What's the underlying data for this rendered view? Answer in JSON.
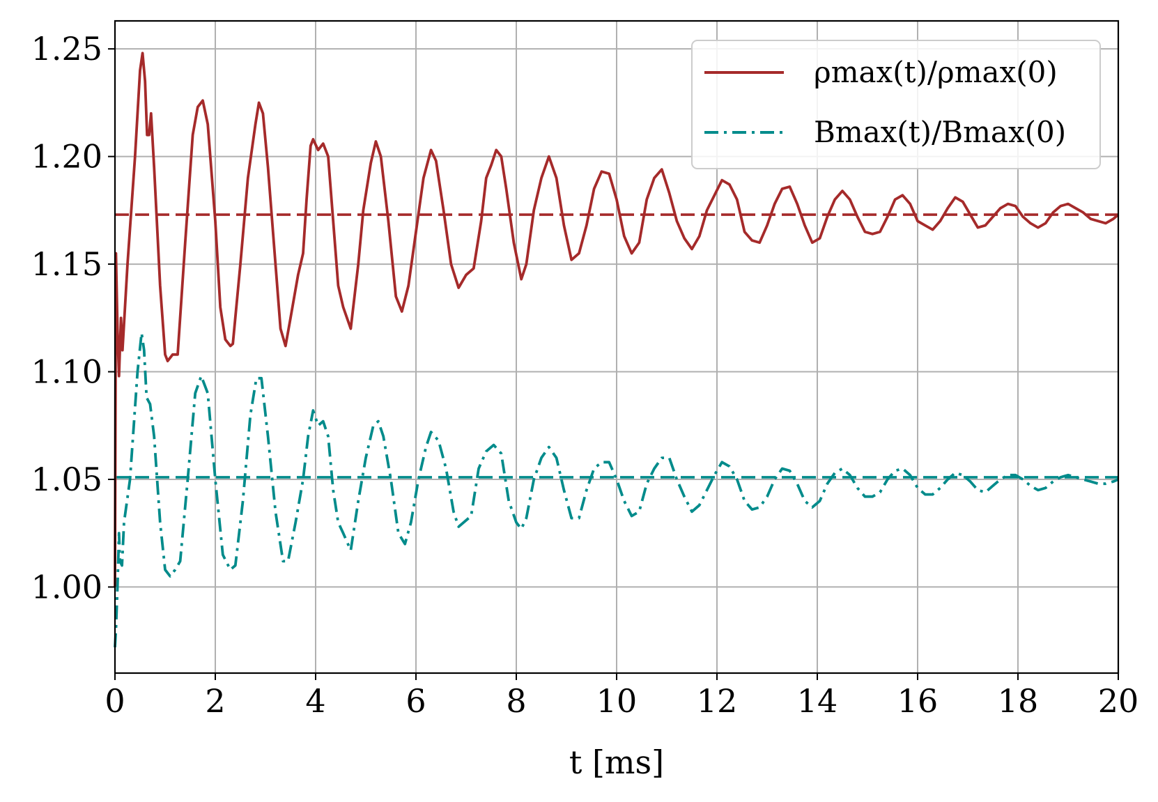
{
  "chart_data": {
    "type": "line",
    "title": "",
    "xlabel": "t [ms]",
    "ylabel": "",
    "xlim": [
      0,
      20
    ],
    "ylim": [
      0.96,
      1.263
    ],
    "x_ticks": [
      0,
      2,
      4,
      6,
      8,
      10,
      12,
      14,
      16,
      18,
      20
    ],
    "y_ticks": [
      1.0,
      1.05,
      1.1,
      1.15,
      1.2,
      1.25
    ],
    "x_tick_labels": [
      "0",
      "2",
      "4",
      "6",
      "8",
      "10",
      "12",
      "14",
      "16",
      "18",
      "20"
    ],
    "y_tick_labels": [
      "1.00",
      "1.05",
      "1.10",
      "1.15",
      "1.20",
      "1.25"
    ],
    "grid": true,
    "legend_position": "top-right",
    "series": [
      {
        "name": "ρmax(t)/ρmax(0)",
        "color": "#a52a2a",
        "style": "solid",
        "points": [
          [
            0.0,
            1.0
          ],
          [
            0.02,
            1.155
          ],
          [
            0.05,
            1.12
          ],
          [
            0.08,
            1.098
          ],
          [
            0.12,
            1.125
          ],
          [
            0.15,
            1.11
          ],
          [
            0.25,
            1.15
          ],
          [
            0.4,
            1.2
          ],
          [
            0.5,
            1.24
          ],
          [
            0.55,
            1.248
          ],
          [
            0.6,
            1.235
          ],
          [
            0.64,
            1.21
          ],
          [
            0.68,
            1.21
          ],
          [
            0.72,
            1.22
          ],
          [
            0.78,
            1.195
          ],
          [
            0.9,
            1.14
          ],
          [
            1.0,
            1.108
          ],
          [
            1.05,
            1.105
          ],
          [
            1.15,
            1.108
          ],
          [
            1.25,
            1.108
          ],
          [
            1.4,
            1.16
          ],
          [
            1.55,
            1.21
          ],
          [
            1.65,
            1.223
          ],
          [
            1.75,
            1.226
          ],
          [
            1.85,
            1.215
          ],
          [
            2.0,
            1.17
          ],
          [
            2.1,
            1.13
          ],
          [
            2.2,
            1.115
          ],
          [
            2.3,
            1.112
          ],
          [
            2.35,
            1.113
          ],
          [
            2.5,
            1.15
          ],
          [
            2.65,
            1.19
          ],
          [
            2.8,
            1.215
          ],
          [
            2.87,
            1.225
          ],
          [
            2.95,
            1.22
          ],
          [
            3.05,
            1.195
          ],
          [
            3.2,
            1.15
          ],
          [
            3.3,
            1.12
          ],
          [
            3.4,
            1.112
          ],
          [
            3.5,
            1.125
          ],
          [
            3.65,
            1.145
          ],
          [
            3.75,
            1.155
          ],
          [
            3.82,
            1.18
          ],
          [
            3.9,
            1.205
          ],
          [
            3.95,
            1.208
          ],
          [
            4.05,
            1.203
          ],
          [
            4.15,
            1.206
          ],
          [
            4.25,
            1.2
          ],
          [
            4.35,
            1.17
          ],
          [
            4.45,
            1.14
          ],
          [
            4.55,
            1.13
          ],
          [
            4.7,
            1.12
          ],
          [
            4.85,
            1.15
          ],
          [
            4.95,
            1.175
          ],
          [
            5.1,
            1.197
          ],
          [
            5.2,
            1.207
          ],
          [
            5.3,
            1.2
          ],
          [
            5.45,
            1.17
          ],
          [
            5.6,
            1.135
          ],
          [
            5.72,
            1.128
          ],
          [
            5.85,
            1.14
          ],
          [
            6.0,
            1.165
          ],
          [
            6.15,
            1.19
          ],
          [
            6.3,
            1.203
          ],
          [
            6.4,
            1.198
          ],
          [
            6.55,
            1.175
          ],
          [
            6.7,
            1.15
          ],
          [
            6.85,
            1.139
          ],
          [
            7.0,
            1.145
          ],
          [
            7.15,
            1.148
          ],
          [
            7.3,
            1.17
          ],
          [
            7.4,
            1.19
          ],
          [
            7.5,
            1.196
          ],
          [
            7.6,
            1.203
          ],
          [
            7.7,
            1.2
          ],
          [
            7.8,
            1.185
          ],
          [
            7.95,
            1.16
          ],
          [
            8.1,
            1.143
          ],
          [
            8.2,
            1.15
          ],
          [
            8.35,
            1.175
          ],
          [
            8.5,
            1.19
          ],
          [
            8.65,
            1.2
          ],
          [
            8.8,
            1.19
          ],
          [
            8.95,
            1.168
          ],
          [
            9.1,
            1.152
          ],
          [
            9.25,
            1.155
          ],
          [
            9.4,
            1.168
          ],
          [
            9.55,
            1.185
          ],
          [
            9.7,
            1.193
          ],
          [
            9.85,
            1.192
          ],
          [
            10.0,
            1.18
          ],
          [
            10.15,
            1.163
          ],
          [
            10.3,
            1.155
          ],
          [
            10.45,
            1.16
          ],
          [
            10.6,
            1.18
          ],
          [
            10.75,
            1.19
          ],
          [
            10.9,
            1.194
          ],
          [
            11.05,
            1.183
          ],
          [
            11.2,
            1.17
          ],
          [
            11.35,
            1.162
          ],
          [
            11.5,
            1.157
          ],
          [
            11.65,
            1.163
          ],
          [
            11.8,
            1.175
          ],
          [
            11.95,
            1.182
          ],
          [
            12.1,
            1.189
          ],
          [
            12.25,
            1.187
          ],
          [
            12.4,
            1.18
          ],
          [
            12.55,
            1.165
          ],
          [
            12.7,
            1.161
          ],
          [
            12.85,
            1.16
          ],
          [
            13.0,
            1.168
          ],
          [
            13.15,
            1.178
          ],
          [
            13.3,
            1.185
          ],
          [
            13.45,
            1.186
          ],
          [
            13.6,
            1.178
          ],
          [
            13.75,
            1.168
          ],
          [
            13.9,
            1.16
          ],
          [
            14.05,
            1.162
          ],
          [
            14.2,
            1.172
          ],
          [
            14.35,
            1.18
          ],
          [
            14.5,
            1.184
          ],
          [
            14.65,
            1.18
          ],
          [
            14.8,
            1.172
          ],
          [
            14.95,
            1.165
          ],
          [
            15.1,
            1.164
          ],
          [
            15.25,
            1.165
          ],
          [
            15.4,
            1.172
          ],
          [
            15.55,
            1.18
          ],
          [
            15.7,
            1.182
          ],
          [
            15.85,
            1.178
          ],
          [
            16.0,
            1.17
          ],
          [
            16.15,
            1.168
          ],
          [
            16.3,
            1.166
          ],
          [
            16.45,
            1.17
          ],
          [
            16.6,
            1.176
          ],
          [
            16.75,
            1.181
          ],
          [
            16.9,
            1.179
          ],
          [
            17.05,
            1.173
          ],
          [
            17.2,
            1.167
          ],
          [
            17.35,
            1.168
          ],
          [
            17.5,
            1.172
          ],
          [
            17.65,
            1.176
          ],
          [
            17.8,
            1.178
          ],
          [
            17.95,
            1.177
          ],
          [
            18.1,
            1.172
          ],
          [
            18.25,
            1.169
          ],
          [
            18.4,
            1.167
          ],
          [
            18.55,
            1.169
          ],
          [
            18.7,
            1.174
          ],
          [
            18.85,
            1.177
          ],
          [
            19.0,
            1.178
          ],
          [
            19.15,
            1.176
          ],
          [
            19.3,
            1.174
          ],
          [
            19.45,
            1.171
          ],
          [
            19.6,
            1.17
          ],
          [
            19.75,
            1.169
          ],
          [
            19.9,
            1.171
          ],
          [
            20.0,
            1.173
          ]
        ]
      },
      {
        "name": "Bmax(t)/Bmax(0)",
        "color": "#008b8b",
        "style": "dashdot",
        "points": [
          [
            0.0,
            0.972
          ],
          [
            0.02,
            0.98
          ],
          [
            0.05,
            1.0
          ],
          [
            0.08,
            1.025
          ],
          [
            0.1,
            1.012
          ],
          [
            0.14,
            1.01
          ],
          [
            0.18,
            1.03
          ],
          [
            0.3,
            1.05
          ],
          [
            0.45,
            1.1
          ],
          [
            0.53,
            1.118
          ],
          [
            0.58,
            1.11
          ],
          [
            0.63,
            1.088
          ],
          [
            0.7,
            1.085
          ],
          [
            0.78,
            1.07
          ],
          [
            0.9,
            1.03
          ],
          [
            1.0,
            1.008
          ],
          [
            1.1,
            1.005
          ],
          [
            1.2,
            1.008
          ],
          [
            1.3,
            1.012
          ],
          [
            1.45,
            1.05
          ],
          [
            1.6,
            1.09
          ],
          [
            1.72,
            1.098
          ],
          [
            1.85,
            1.09
          ],
          [
            2.0,
            1.05
          ],
          [
            2.15,
            1.015
          ],
          [
            2.3,
            1.008
          ],
          [
            2.4,
            1.01
          ],
          [
            2.55,
            1.04
          ],
          [
            2.7,
            1.08
          ],
          [
            2.82,
            1.097
          ],
          [
            2.92,
            1.097
          ],
          [
            3.05,
            1.07
          ],
          [
            3.2,
            1.035
          ],
          [
            3.35,
            1.012
          ],
          [
            3.45,
            1.012
          ],
          [
            3.6,
            1.03
          ],
          [
            3.75,
            1.05
          ],
          [
            3.85,
            1.07
          ],
          [
            3.95,
            1.082
          ],
          [
            4.05,
            1.075
          ],
          [
            4.15,
            1.077
          ],
          [
            4.25,
            1.07
          ],
          [
            4.35,
            1.045
          ],
          [
            4.45,
            1.03
          ],
          [
            4.55,
            1.025
          ],
          [
            4.7,
            1.017
          ],
          [
            4.85,
            1.04
          ],
          [
            5.0,
            1.06
          ],
          [
            5.15,
            1.075
          ],
          [
            5.25,
            1.077
          ],
          [
            5.35,
            1.07
          ],
          [
            5.5,
            1.05
          ],
          [
            5.65,
            1.025
          ],
          [
            5.78,
            1.02
          ],
          [
            5.9,
            1.03
          ],
          [
            6.05,
            1.05
          ],
          [
            6.2,
            1.065
          ],
          [
            6.3,
            1.072
          ],
          [
            6.45,
            1.068
          ],
          [
            6.6,
            1.055
          ],
          [
            6.75,
            1.035
          ],
          [
            6.85,
            1.028
          ],
          [
            6.95,
            1.03
          ],
          [
            7.1,
            1.033
          ],
          [
            7.25,
            1.055
          ],
          [
            7.4,
            1.063
          ],
          [
            7.55,
            1.066
          ],
          [
            7.7,
            1.062
          ],
          [
            7.85,
            1.04
          ],
          [
            8.0,
            1.03
          ],
          [
            8.1,
            1.027
          ],
          [
            8.2,
            1.032
          ],
          [
            8.35,
            1.05
          ],
          [
            8.5,
            1.06
          ],
          [
            8.65,
            1.065
          ],
          [
            8.8,
            1.06
          ],
          [
            8.95,
            1.045
          ],
          [
            9.1,
            1.032
          ],
          [
            9.25,
            1.032
          ],
          [
            9.4,
            1.045
          ],
          [
            9.55,
            1.055
          ],
          [
            9.7,
            1.058
          ],
          [
            9.85,
            1.058
          ],
          [
            10.0,
            1.05
          ],
          [
            10.15,
            1.04
          ],
          [
            10.3,
            1.033
          ],
          [
            10.45,
            1.035
          ],
          [
            10.6,
            1.048
          ],
          [
            10.75,
            1.055
          ],
          [
            10.9,
            1.06
          ],
          [
            11.05,
            1.06
          ],
          [
            11.2,
            1.05
          ],
          [
            11.35,
            1.042
          ],
          [
            11.5,
            1.035
          ],
          [
            11.65,
            1.038
          ],
          [
            11.8,
            1.045
          ],
          [
            11.95,
            1.052
          ],
          [
            12.1,
            1.058
          ],
          [
            12.25,
            1.056
          ],
          [
            12.4,
            1.05
          ],
          [
            12.55,
            1.04
          ],
          [
            12.7,
            1.036
          ],
          [
            12.85,
            1.037
          ],
          [
            13.0,
            1.042
          ],
          [
            13.15,
            1.05
          ],
          [
            13.3,
            1.055
          ],
          [
            13.45,
            1.054
          ],
          [
            13.6,
            1.048
          ],
          [
            13.75,
            1.04
          ],
          [
            13.9,
            1.037
          ],
          [
            14.05,
            1.04
          ],
          [
            14.2,
            1.048
          ],
          [
            14.35,
            1.053
          ],
          [
            14.5,
            1.055
          ],
          [
            14.65,
            1.052
          ],
          [
            14.8,
            1.046
          ],
          [
            14.95,
            1.042
          ],
          [
            15.1,
            1.042
          ],
          [
            15.25,
            1.044
          ],
          [
            15.4,
            1.05
          ],
          [
            15.55,
            1.054
          ],
          [
            15.7,
            1.055
          ],
          [
            15.85,
            1.052
          ],
          [
            16.0,
            1.046
          ],
          [
            16.15,
            1.043
          ],
          [
            16.3,
            1.043
          ],
          [
            16.45,
            1.046
          ],
          [
            16.6,
            1.05
          ],
          [
            16.75,
            1.053
          ],
          [
            16.9,
            1.052
          ],
          [
            17.05,
            1.049
          ],
          [
            17.2,
            1.045
          ],
          [
            17.35,
            1.044
          ],
          [
            17.5,
            1.047
          ],
          [
            17.65,
            1.05
          ],
          [
            17.8,
            1.052
          ],
          [
            17.95,
            1.052
          ],
          [
            18.1,
            1.05
          ],
          [
            18.25,
            1.047
          ],
          [
            18.4,
            1.045
          ],
          [
            18.55,
            1.046
          ],
          [
            18.7,
            1.049
          ],
          [
            18.85,
            1.051
          ],
          [
            19.0,
            1.052
          ],
          [
            19.15,
            1.051
          ],
          [
            19.3,
            1.05
          ],
          [
            19.45,
            1.049
          ],
          [
            19.6,
            1.048
          ],
          [
            19.75,
            1.048
          ],
          [
            19.9,
            1.049
          ],
          [
            20.0,
            1.05
          ]
        ]
      }
    ],
    "reference_lines": [
      {
        "y": 1.173,
        "color": "#a52a2a",
        "style": "dashed"
      },
      {
        "y": 1.051,
        "color": "#008b8b",
        "style": "dashed"
      }
    ]
  }
}
